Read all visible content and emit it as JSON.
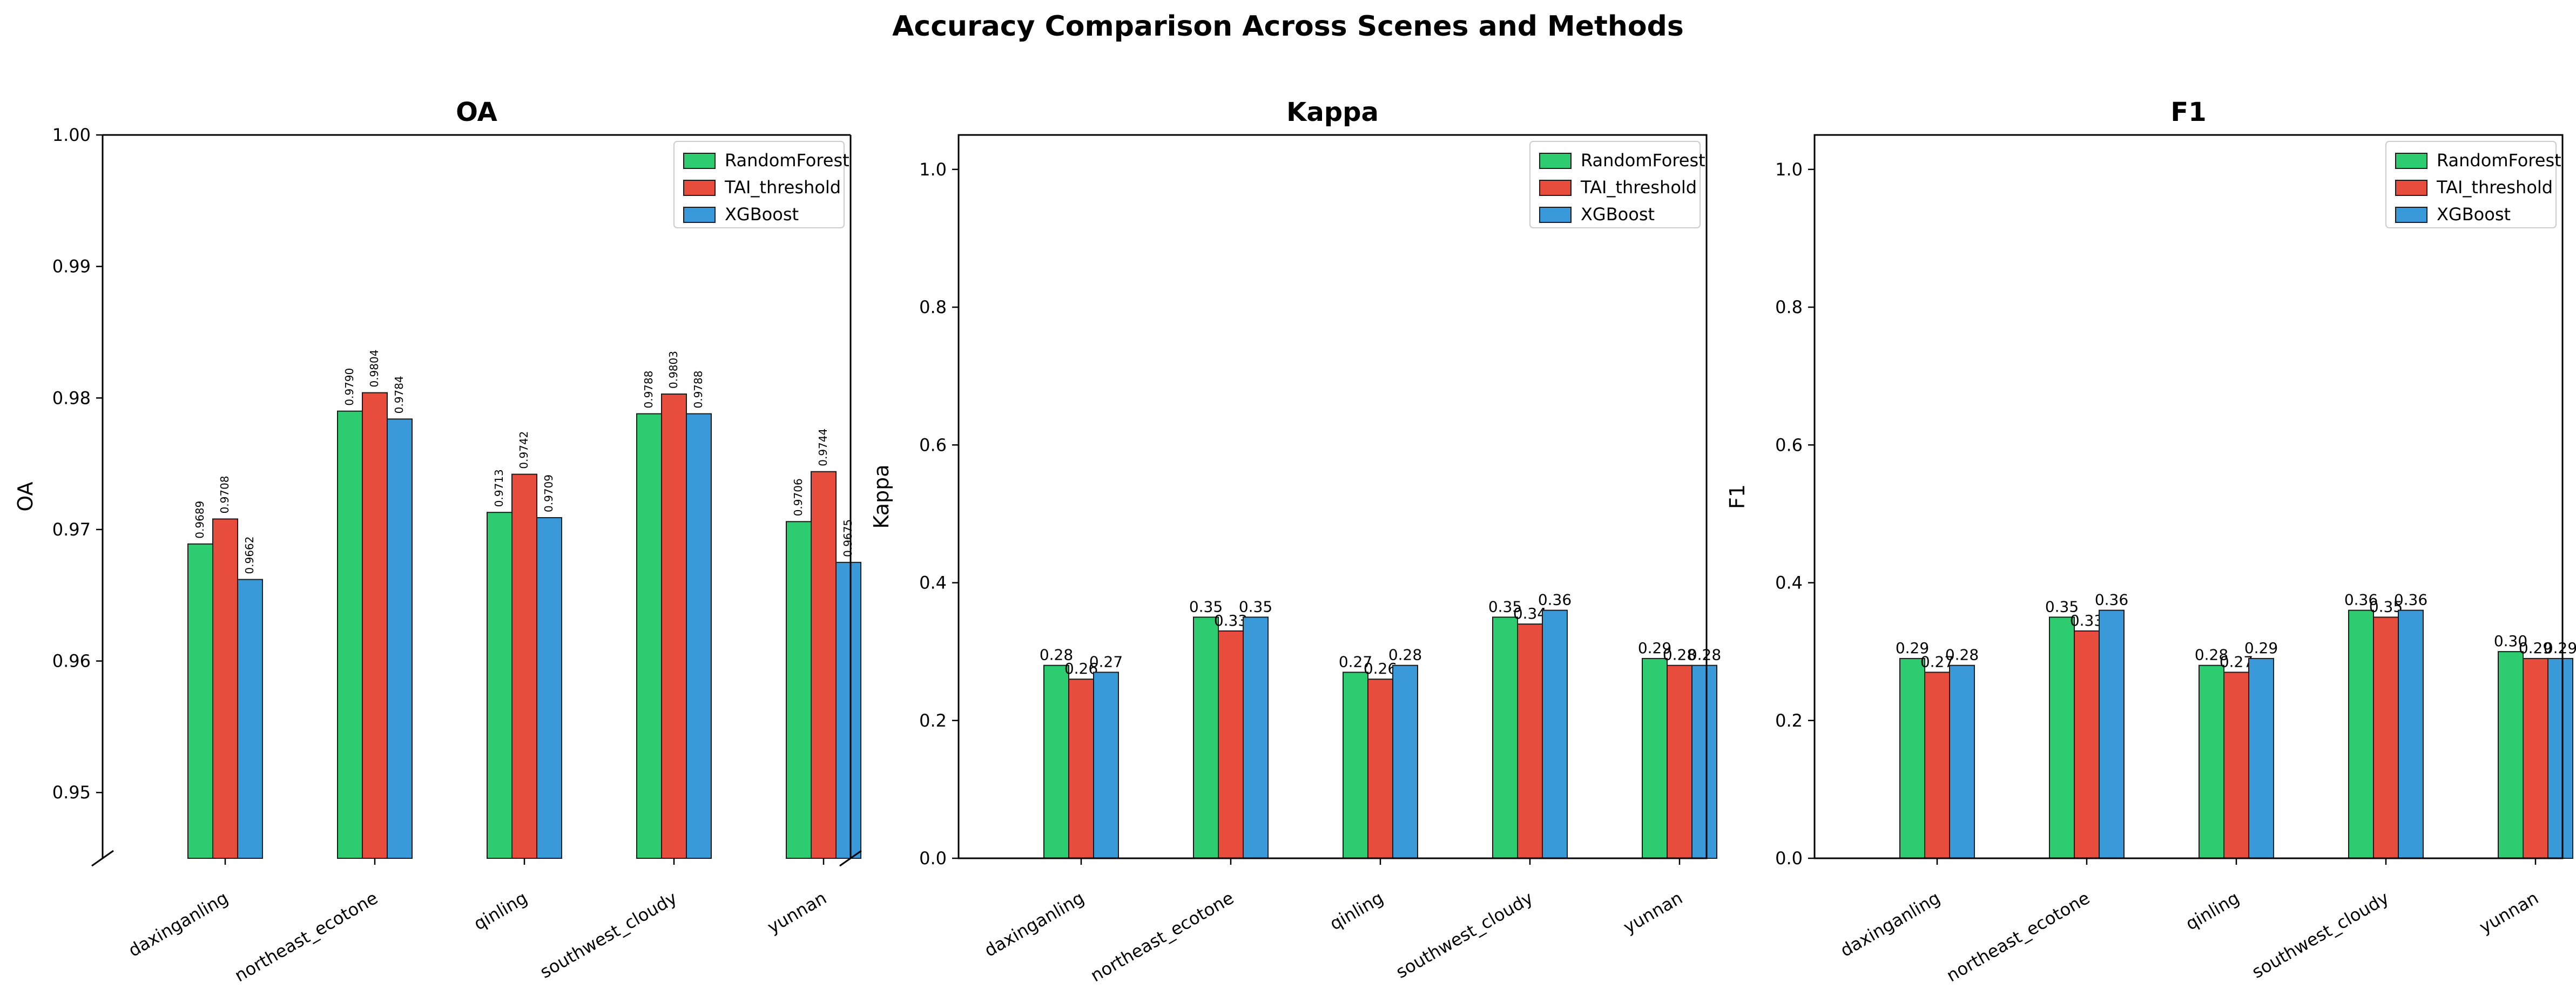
{
  "figure": {
    "title": "Accuracy Comparison Across Scenes and Methods"
  },
  "colors": {
    "RandomForest": "#2ecc71",
    "TAI_threshold": "#e74c3c",
    "XGBoost": "#3a9ad9",
    "edge": "#1a1a1a"
  },
  "chart_data": [
    {
      "type": "bar",
      "title": "OA",
      "ylabel": "OA",
      "xlabel": "",
      "categories": [
        "daxinganling",
        "northeast_ecotone",
        "qinling",
        "southwest_cloudy",
        "yunnan"
      ],
      "ylim": [
        0.945,
        1.0
      ],
      "yticks": [
        0.95,
        0.96,
        0.97,
        0.98,
        0.99,
        1.0
      ],
      "ytick_labels": [
        "0.95",
        "0.96",
        "0.97",
        "0.98",
        "0.99",
        "1.00"
      ],
      "broken_axis": true,
      "legend": "top-right",
      "grid": false,
      "series": [
        {
          "name": "RandomForest",
          "values": [
            0.9689,
            0.979,
            0.9713,
            0.9788,
            0.9706
          ],
          "labels": [
            "0.9689",
            "0.9790",
            "0.9713",
            "0.9788",
            "0.9706"
          ]
        },
        {
          "name": "TAI_threshold",
          "values": [
            0.9708,
            0.9804,
            0.9742,
            0.9803,
            0.9744
          ],
          "labels": [
            "0.9708",
            "0.9804",
            "0.9742",
            "0.9803",
            "0.9744"
          ]
        },
        {
          "name": "XGBoost",
          "values": [
            0.9662,
            0.9784,
            0.9709,
            0.9788,
            0.9675
          ],
          "labels": [
            "0.9662",
            "0.9784",
            "0.9709",
            "0.9788",
            "0.9675"
          ]
        }
      ]
    },
    {
      "type": "bar",
      "title": "Kappa",
      "ylabel": "Kappa",
      "xlabel": "",
      "categories": [
        "daxinganling",
        "northeast_ecotone",
        "qinling",
        "southwest_cloudy",
        "yunnan"
      ],
      "ylim": [
        0.0,
        1.05
      ],
      "yticks": [
        0.0,
        0.2,
        0.4,
        0.6,
        0.8,
        1.0
      ],
      "ytick_labels": [
        "0.0",
        "0.2",
        "0.4",
        "0.6",
        "0.8",
        "1.0"
      ],
      "broken_axis": false,
      "legend": "top-right",
      "grid": false,
      "series": [
        {
          "name": "RandomForest",
          "values": [
            0.28,
            0.35,
            0.27,
            0.35,
            0.29
          ],
          "labels": [
            "0.28",
            "0.35",
            "0.27",
            "0.35",
            "0.29"
          ]
        },
        {
          "name": "TAI_threshold",
          "values": [
            0.26,
            0.33,
            0.26,
            0.34,
            0.28
          ],
          "labels": [
            "0.26",
            "0.33",
            "0.26",
            "0.34",
            "0.28"
          ]
        },
        {
          "name": "XGBoost",
          "values": [
            0.27,
            0.35,
            0.28,
            0.36,
            0.28
          ],
          "labels": [
            "0.27",
            "0.35",
            "0.28",
            "0.36",
            "0.28"
          ]
        }
      ]
    },
    {
      "type": "bar",
      "title": "F1",
      "ylabel": "F1",
      "xlabel": "",
      "categories": [
        "daxinganling",
        "northeast_ecotone",
        "qinling",
        "southwest_cloudy",
        "yunnan"
      ],
      "ylim": [
        0.0,
        1.05
      ],
      "yticks": [
        0.0,
        0.2,
        0.4,
        0.6,
        0.8,
        1.0
      ],
      "ytick_labels": [
        "0.0",
        "0.2",
        "0.4",
        "0.6",
        "0.8",
        "1.0"
      ],
      "broken_axis": false,
      "legend": "top-right",
      "grid": false,
      "series": [
        {
          "name": "RandomForest",
          "values": [
            0.29,
            0.35,
            0.28,
            0.36,
            0.3
          ],
          "labels": [
            "0.29",
            "0.35",
            "0.28",
            "0.36",
            "0.30"
          ]
        },
        {
          "name": "TAI_threshold",
          "values": [
            0.27,
            0.33,
            0.27,
            0.35,
            0.29
          ],
          "labels": [
            "0.27",
            "0.33",
            "0.27",
            "0.35",
            "0.29"
          ]
        },
        {
          "name": "XGBoost",
          "values": [
            0.28,
            0.36,
            0.29,
            0.36,
            0.29
          ],
          "labels": [
            "0.28",
            "0.36",
            "0.29",
            "0.36",
            "0.29"
          ]
        }
      ]
    }
  ]
}
